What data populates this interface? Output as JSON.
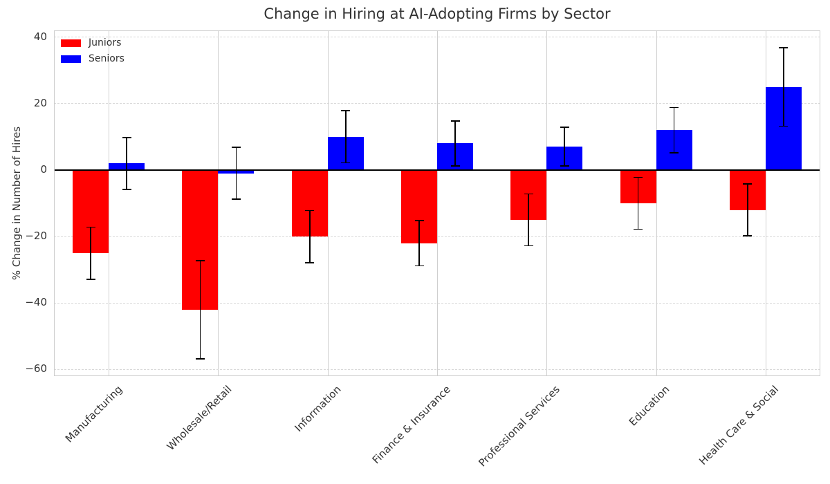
{
  "chart_data": {
    "type": "bar",
    "title": "Change in Hiring at AI-Adopting Firms by Sector",
    "ylabel": "% Change in Number of Hires",
    "xlabel": "",
    "categories": [
      "Manufacturing",
      "Wholesale/Retail",
      "Information",
      "Finance & Insurance",
      "Professional Services",
      "Education",
      "Health Care & Social"
    ],
    "series": [
      {
        "name": "Juniors",
        "color": "#ff0000",
        "values": [
          -25,
          -42,
          -20,
          -22,
          -15,
          -10,
          -12
        ],
        "errors": [
          8,
          15,
          8,
          7,
          8,
          8,
          8
        ]
      },
      {
        "name": "Seniors",
        "color": "#0000ff",
        "values": [
          2,
          -1,
          10,
          8,
          7,
          12,
          25
        ],
        "errors": [
          8,
          8,
          8,
          7,
          6,
          7,
          12
        ]
      }
    ],
    "yticks": [
      40,
      20,
      0,
      -20,
      -40,
      -60
    ],
    "yticklabels": [
      "40",
      "20",
      "0",
      "−20",
      "−40",
      "−60"
    ],
    "ylim": [
      -62,
      42
    ],
    "grid": true,
    "legend_position": "upper-left",
    "error_bar_color": "#000000",
    "background_color": "#ffffff",
    "grid_color": "#d8d8d8",
    "axis_color": "#cccccc",
    "text_color": "#333333"
  }
}
